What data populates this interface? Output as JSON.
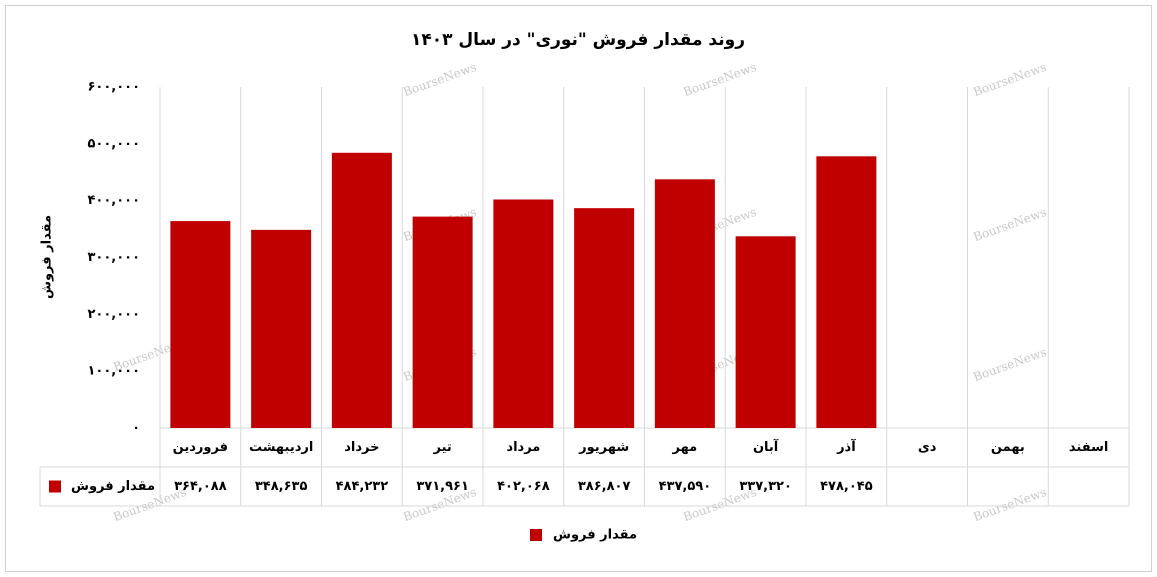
{
  "chart_data": {
    "type": "bar",
    "title": "روند مقدار فروش \"نوری\" در سال ۱۴۰۳",
    "y_label": "مقدار فروش",
    "watermark": "BourseNews",
    "categories": [
      "فروردین",
      "اردیبهشت",
      "خرداد",
      "تیر",
      "مرداد",
      "شهریور",
      "مهر",
      "آبان",
      "آذر",
      "دی",
      "بهمن",
      "اسفند"
    ],
    "series": [
      {
        "name": "مقدار فروش",
        "color": "#c00000",
        "values": [
          364088,
          348635,
          484232,
          371961,
          402068,
          386807,
          437590,
          337320,
          478045,
          null,
          null,
          null
        ],
        "value_labels": [
          "۳۶۴,۰۸۸",
          "۳۴۸,۶۳۵",
          "۴۸۴,۲۳۲",
          "۳۷۱,۹۶۱",
          "۴۰۲,۰۶۸",
          "۳۸۶,۸۰۷",
          "۴۳۷,۵۹۰",
          "۳۳۷,۳۲۰",
          "۴۷۸,۰۴۵",
          null,
          null,
          null
        ]
      }
    ],
    "ylim": [
      0,
      600000
    ],
    "yticks": [
      {
        "value": 0,
        "label": "۰"
      },
      {
        "value": 100000,
        "label": "۱۰۰,۰۰۰"
      },
      {
        "value": 200000,
        "label": "۲۰۰,۰۰۰"
      },
      {
        "value": 300000,
        "label": "۳۰۰,۰۰۰"
      },
      {
        "value": 400000,
        "label": "۴۰۰,۰۰۰"
      },
      {
        "value": 500000,
        "label": "۵۰۰,۰۰۰"
      },
      {
        "value": 600000,
        "label": "۶۰۰,۰۰۰"
      }
    ],
    "grid": true,
    "legend": "bottom"
  }
}
